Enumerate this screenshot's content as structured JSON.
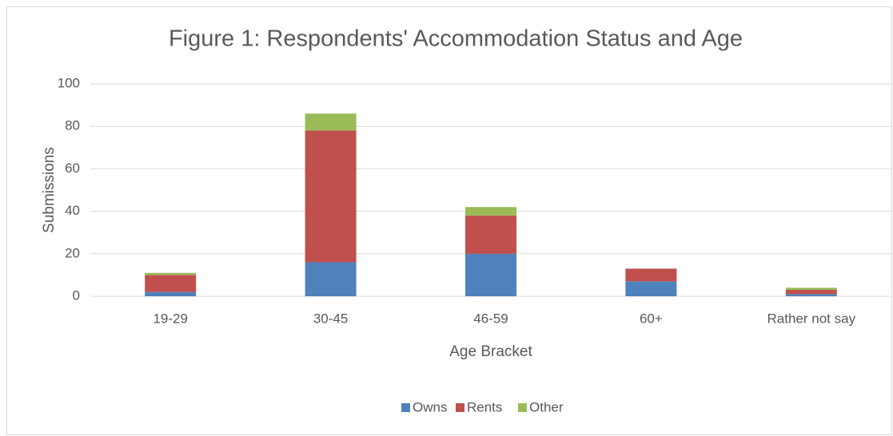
{
  "chart_data": {
    "type": "stacked_bar",
    "title": "Figure 1: Respondents' Accommodation Status and Age",
    "x_label": "Age Bracket",
    "y_label": "Submissions",
    "categories": [
      "19-29",
      "30-45",
      "46-59",
      "60+",
      "Rather not say"
    ],
    "series": [
      {
        "name": "Owns",
        "color": "#4f81bd",
        "values": [
          2,
          16,
          20,
          7,
          1
        ]
      },
      {
        "name": "Rents",
        "color": "#c0504d",
        "values": [
          8,
          62,
          18,
          6,
          2
        ]
      },
      {
        "name": "Other",
        "color": "#9bbb59",
        "values": [
          1,
          8,
          4,
          0,
          1
        ]
      }
    ],
    "ylim": [
      0,
      100
    ],
    "yticks": [
      0,
      20,
      40,
      60,
      80,
      100
    ],
    "grid": true,
    "legend": "bottom"
  }
}
